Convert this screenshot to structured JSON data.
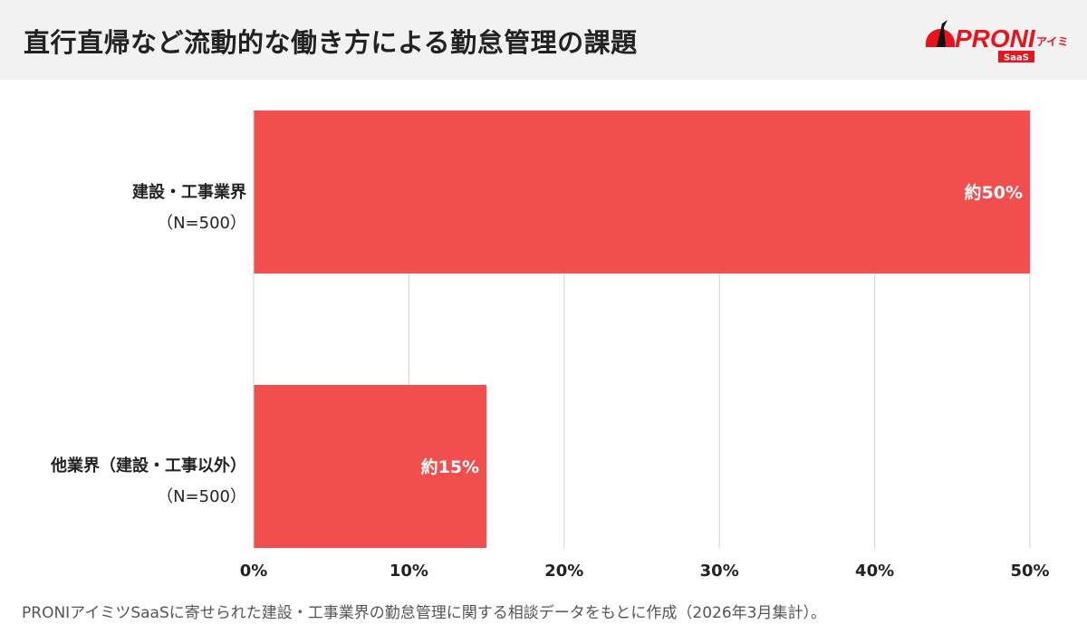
{
  "header": {
    "title": "直行直帰など流動的な働き方による勤怠管理の課題",
    "logo_text": "PRONI",
    "logo_sub": "アイミツ",
    "logo_badge": "SaaS"
  },
  "chart_data": {
    "type": "bar",
    "orientation": "horizontal",
    "categories": [
      {
        "name": "建設・工事業界",
        "n": "（N=500）"
      },
      {
        "name": "他業界（建設・工事以外）",
        "n": "（N=500）"
      }
    ],
    "values": [
      50,
      15
    ],
    "data_labels": [
      "約50%",
      "約15%"
    ],
    "xlim": [
      0,
      50
    ],
    "ticks": [
      "0%",
      "10%",
      "20%",
      "30%",
      "40%",
      "50%"
    ],
    "grid": true,
    "bar_color": "#f24e4e"
  },
  "footnote": "PRONIアイミツSaaSに寄せられた建設・工事業界の勤怠管理に関する相談データをもとに作成（2026年3月集計）。"
}
